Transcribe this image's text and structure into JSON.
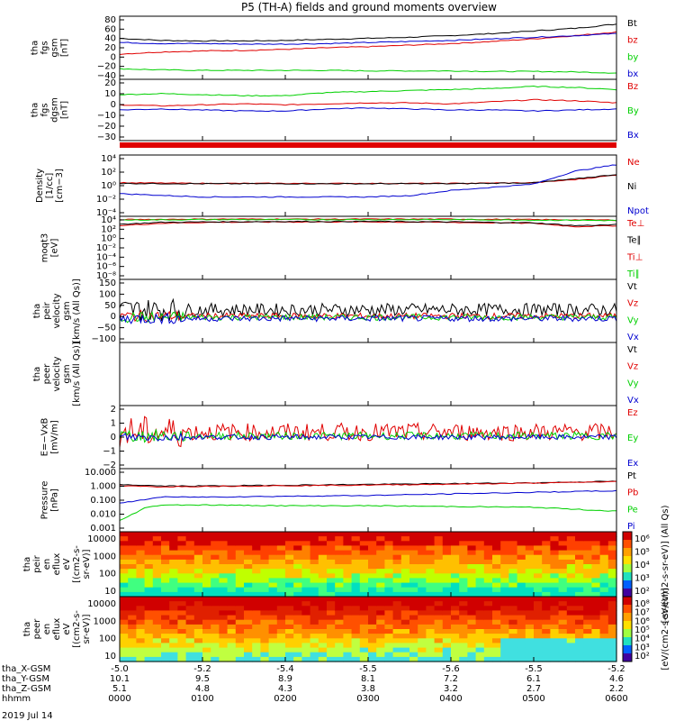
{
  "title": "P5 (TH-A) fields and ground moments overview",
  "colors": {
    "black": "#000000",
    "red": "#e00000",
    "green": "#00d000",
    "blue": "#0000d0"
  },
  "ephemeris": {
    "rows": [
      {
        "label": "tha_X-GSM",
        "values": [
          "-5.0",
          "-5.2",
          "-5.4",
          "-5.5",
          "-5.6",
          "-5.5",
          "-5.2"
        ]
      },
      {
        "label": "tha_Y-GSM",
        "values": [
          "10.1",
          "9.5",
          "8.9",
          "8.1",
          "7.2",
          "6.1",
          "4.6"
        ]
      },
      {
        "label": "tha_Z-GSM",
        "values": [
          "5.1",
          "4.8",
          "4.3",
          "3.8",
          "3.2",
          "2.7",
          "2.2"
        ]
      },
      {
        "label": "hhmm",
        "values": [
          "0000",
          "0100",
          "0200",
          "0300",
          "0400",
          "0500",
          "0600"
        ]
      }
    ],
    "date": "2019 Jul 14"
  },
  "chart_data": [
    {
      "id": "p1",
      "type": "line",
      "ylabel": [
        "tha",
        "fgs",
        "gsm",
        "[nT]"
      ],
      "yticks": [
        "80",
        "60",
        "40",
        "20",
        "0",
        "−20",
        "−40"
      ],
      "yrange": [
        -40,
        80
      ],
      "series": [
        {
          "name": "Bt",
          "color": "#000000",
          "x": [
            0,
            0.5,
            1,
            1.5,
            2,
            2.5,
            3,
            3.5,
            4,
            4.5,
            5,
            5.5,
            6
          ],
          "y": [
            38,
            34,
            33,
            33,
            34,
            36,
            38,
            40,
            43,
            47,
            52,
            57,
            65
          ]
        },
        {
          "name": "bz",
          "color": "#e00000",
          "x": [
            0,
            0.5,
            1,
            1.5,
            2,
            2.5,
            3,
            3.5,
            4,
            4.5,
            5,
            5.5,
            6
          ],
          "y": [
            8,
            12,
            14,
            15,
            17,
            20,
            22,
            25,
            28,
            32,
            37,
            43,
            50
          ]
        },
        {
          "name": "by",
          "color": "#00d000",
          "x": [
            0,
            0.5,
            1,
            1.5,
            2,
            2.5,
            3,
            3.5,
            4,
            4.5,
            5,
            5.5,
            6
          ],
          "y": [
            -20,
            -22,
            -23,
            -23,
            -23,
            -23,
            -24,
            -24,
            -24,
            -25,
            -25,
            -26,
            -28
          ]
        },
        {
          "name": "bx",
          "color": "#0000d0",
          "x": [
            0,
            0.5,
            1,
            1.5,
            2,
            2.5,
            3,
            3.5,
            4,
            4.5,
            5,
            5.5,
            6
          ],
          "y": [
            30,
            28,
            28,
            27,
            27,
            28,
            30,
            32,
            34,
            37,
            40,
            43,
            47
          ]
        }
      ]
    },
    {
      "id": "p2",
      "type": "line",
      "ylabel": [
        "tha",
        "fgs",
        "dgsm",
        "[nT]"
      ],
      "yticks": [
        "20",
        "10",
        "0",
        "−10",
        "−20",
        "−30"
      ],
      "yrange": [
        -35,
        25
      ],
      "series": [
        {
          "name": "Bz",
          "color": "#e00000",
          "x": [
            0,
            0.5,
            1,
            1.5,
            2,
            2.5,
            3,
            3.5,
            4,
            4.5,
            5,
            5.5,
            6
          ],
          "y": [
            0,
            -1,
            0,
            1,
            0,
            1,
            2,
            2,
            1,
            3,
            5,
            4,
            2
          ]
        },
        {
          "name": "By",
          "color": "#00d000",
          "x": [
            0,
            0.5,
            1,
            1.5,
            2,
            2.5,
            3,
            3.5,
            4,
            4.5,
            5,
            5.5,
            6
          ],
          "y": [
            10,
            11,
            10,
            9,
            9,
            12,
            13,
            14,
            15,
            16,
            18,
            17,
            15
          ]
        },
        {
          "name": "Bx",
          "color": "#0000d0",
          "x": [
            0,
            0.5,
            1,
            1.5,
            2,
            2.5,
            3,
            3.5,
            4,
            4.5,
            5,
            5.5,
            6
          ],
          "y": [
            -5,
            -4,
            -5,
            -6,
            -6,
            -4,
            -3,
            -4,
            -5,
            -5,
            -6,
            -5,
            -4
          ]
        }
      ]
    },
    {
      "id": "p3",
      "type": "line",
      "log": true,
      "ylabel": [
        "Density",
        "[1/cc]",
        "[cm−3]"
      ],
      "yticks": [
        "10⁴",
        "10²",
        "10⁰",
        "10⁻²",
        "10⁻⁴"
      ],
      "yrange": [
        -5,
        4.5
      ],
      "series": [
        {
          "name": "Ne",
          "color": "#e00000",
          "x": [
            0,
            1,
            2,
            3,
            4,
            5,
            5.5,
            6
          ],
          "y": [
            0.2,
            0.1,
            0.1,
            0.1,
            0.1,
            0.2,
            0.7,
            1.4
          ]
        },
        {
          "name": "Ni",
          "color": "#000000",
          "x": [
            0,
            1,
            2,
            3,
            4,
            5,
            5.5,
            6
          ],
          "y": [
            0.1,
            0.05,
            0.05,
            0.05,
            0.05,
            0.2,
            0.8,
            1.5
          ]
        },
        {
          "name": "Npot",
          "color": "#0000d0",
          "x": [
            0,
            1,
            2,
            3,
            3.5,
            4,
            4.5,
            5,
            5.5,
            6
          ],
          "y": [
            -1.5,
            -2,
            -2,
            -2,
            -1.8,
            -1,
            -0.5,
            0,
            2,
            3
          ]
        }
      ]
    },
    {
      "id": "p4",
      "type": "line",
      "log": true,
      "ylabel": [
        "moqt3",
        "[eV]"
      ],
      "yticks": [
        "10⁴",
        "10²",
        "10⁰",
        "10⁻²",
        "10⁻⁴",
        "10⁻⁶",
        "10⁻⁸"
      ],
      "yrange": [
        -9,
        4.5
      ],
      "series": [
        {
          "name": "Te⊥",
          "color": "#e00000",
          "x": [
            0,
            0.5,
            1,
            2,
            3,
            4,
            5,
            5.5,
            6
          ],
          "y": [
            2.5,
            3,
            3.2,
            3.3,
            3.3,
            3.2,
            3,
            2.3,
            2.5
          ]
        },
        {
          "name": "Te∥",
          "color": "#000000",
          "x": [
            0,
            0.5,
            1,
            2,
            3,
            4,
            5,
            5.5,
            6
          ],
          "y": [
            2.8,
            3.2,
            3.3,
            3.4,
            3.4,
            3.3,
            3.1,
            2.5,
            2.7
          ]
        },
        {
          "name": "Ti⊥",
          "color": "#e00000",
          "x": [
            0,
            1,
            2,
            3,
            4,
            5,
            6
          ],
          "y": [
            3.8,
            3.9,
            3.9,
            3.9,
            3.9,
            3.8,
            3.7
          ]
        },
        {
          "name": "Ti∥",
          "color": "#00d000",
          "x": [
            0,
            1,
            2,
            3,
            4,
            5,
            6
          ],
          "y": [
            3.7,
            3.8,
            3.8,
            3.8,
            3.8,
            3.7,
            3.6
          ]
        }
      ]
    },
    {
      "id": "p5",
      "type": "line",
      "noisy": true,
      "ylabel": [
        "tha",
        "peir",
        "velocity",
        "gsm",
        "[km/s (All Qs)]"
      ],
      "yticks": [
        "150",
        "100",
        "50",
        "0",
        "−50",
        "−100"
      ],
      "yrange": [
        -100,
        150
      ],
      "series": [
        {
          "name": "Vt",
          "color": "#000000",
          "base": 30,
          "amp": 25
        },
        {
          "name": "Vz",
          "color": "#e00000",
          "base": 5,
          "amp": 12
        },
        {
          "name": "Vy",
          "color": "#00d000",
          "base": 0,
          "amp": 12
        },
        {
          "name": "Vx",
          "color": "#0000d0",
          "base": -5,
          "amp": 12
        }
      ]
    },
    {
      "id": "p6",
      "type": "line",
      "ylabel": [
        "tha",
        "peer",
        "velocity",
        "gsm",
        "[km/s (All Qs)]"
      ],
      "yticks": [],
      "yrange": [
        0,
        1
      ],
      "series": [
        {
          "name": "Vt",
          "color": "#000000"
        },
        {
          "name": "Vz",
          "color": "#e00000"
        },
        {
          "name": "Vy",
          "color": "#00d000"
        },
        {
          "name": "Vx",
          "color": "#0000d0"
        }
      ]
    },
    {
      "id": "p7",
      "type": "line",
      "noisy": true,
      "ylabel": [
        "E=−VxB",
        "[mV/m]"
      ],
      "yticks": [
        "2",
        "1",
        "0",
        "−1",
        "−2"
      ],
      "yrange": [
        -2.5,
        2.5
      ],
      "series": [
        {
          "name": "Ez",
          "color": "#e00000",
          "base": 0.4,
          "amp": 0.7
        },
        {
          "name": "Ey",
          "color": "#00d000",
          "base": 0.1,
          "amp": 0.3
        },
        {
          "name": "Ex",
          "color": "#0000d0",
          "base": 0,
          "amp": 0.2
        }
      ]
    },
    {
      "id": "p8",
      "type": "line",
      "log": true,
      "ylabel": [
        "Pressure",
        "[nPa]"
      ],
      "yticks": [
        "10.000",
        "1.000",
        "0.100",
        "0.010",
        "0.001"
      ],
      "yrange": [
        -3,
        1
      ],
      "series": [
        {
          "name": "Pt",
          "color": "#000000",
          "x": [
            0,
            0.5,
            1,
            2,
            3,
            4,
            5,
            6
          ],
          "y": [
            0,
            -0.1,
            -0.1,
            -0.05,
            0,
            0.05,
            0.1,
            0.2
          ]
        },
        {
          "name": "Pb",
          "color": "#e00000",
          "x": [
            0,
            0.5,
            1,
            2,
            3,
            4,
            5,
            6
          ],
          "y": [
            -0.1,
            -0.15,
            -0.12,
            -0.08,
            -0.04,
            0.02,
            0.08,
            0.18
          ]
        },
        {
          "name": "Pe",
          "color": "#00d000",
          "x": [
            0,
            0.3,
            0.5,
            1,
            2,
            3,
            4,
            5,
            6
          ],
          "y": [
            -2.3,
            -1.5,
            -1.3,
            -1.3,
            -1.35,
            -1.35,
            -1.4,
            -1.45,
            -1.7
          ]
        },
        {
          "name": "Pi",
          "color": "#0000d0",
          "x": [
            0,
            0.5,
            1,
            2,
            3,
            4,
            5,
            6
          ],
          "y": [
            -1.2,
            -0.8,
            -0.8,
            -0.75,
            -0.7,
            -0.6,
            -0.5,
            -0.4
          ]
        }
      ]
    },
    {
      "id": "p9",
      "type": "heatmap",
      "ylabel": [
        "tha",
        "peir",
        "en",
        "eflux",
        "eV",
        "[(cm2-s-",
        "sr-eV)]"
      ],
      "yticks": [
        "10000",
        "1000",
        "100",
        "10"
      ],
      "colorbar": {
        "ticks": [
          "10⁶",
          "10⁵",
          "10⁴",
          "10³",
          "10²"
        ],
        "label": "[eV/(cm2-s-sr-eV)] (All Qs)"
      }
    },
    {
      "id": "p10",
      "type": "heatmap",
      "ylabel": [
        "tha",
        "peer",
        "en",
        "eflux",
        "eV",
        "[(cm2-s-",
        "sr-eV)]"
      ],
      "yticks": [
        "10000",
        "1000",
        "100",
        "10"
      ],
      "colorbar": {
        "ticks": [
          "10⁸",
          "10⁷",
          "10⁶",
          "10⁵",
          "10⁴",
          "10³",
          "10²"
        ],
        "label": "[eV/(cm2-s-sr-eV)]"
      }
    }
  ]
}
